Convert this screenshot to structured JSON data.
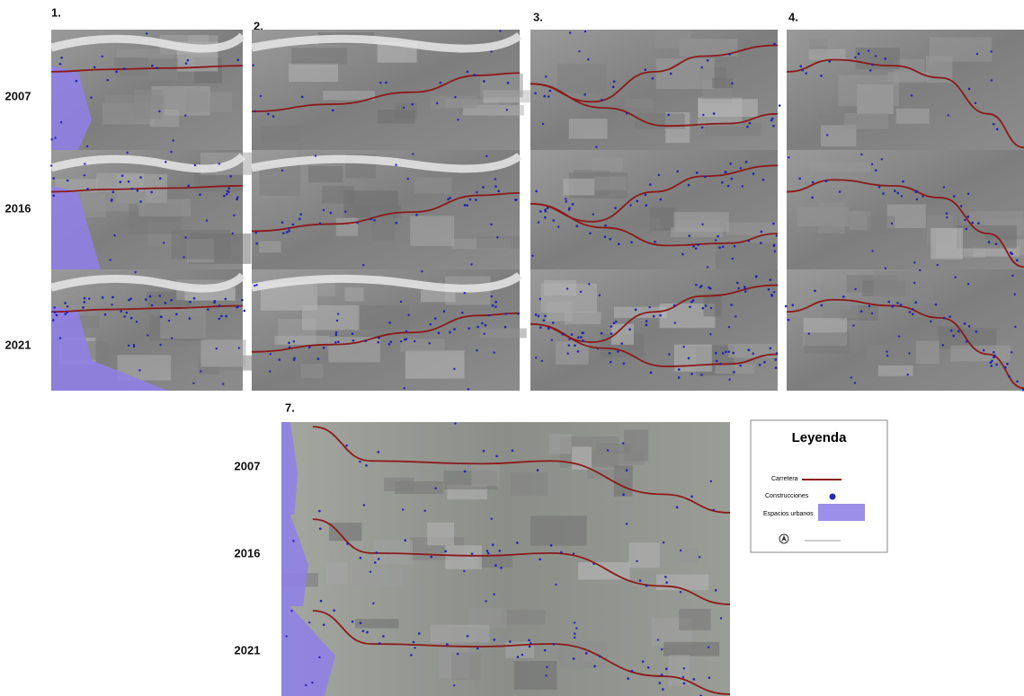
{
  "panels": [
    {
      "label": "1."
    },
    {
      "label": "2."
    },
    {
      "label": "3."
    },
    {
      "label": "4."
    },
    {
      "label": "7."
    }
  ],
  "years": [
    "2007",
    "2016",
    "2021"
  ],
  "legend": {
    "title": "Leyenda",
    "items": [
      "Carretera",
      "Construcciones",
      "Espacios urbanos"
    ]
  }
}
